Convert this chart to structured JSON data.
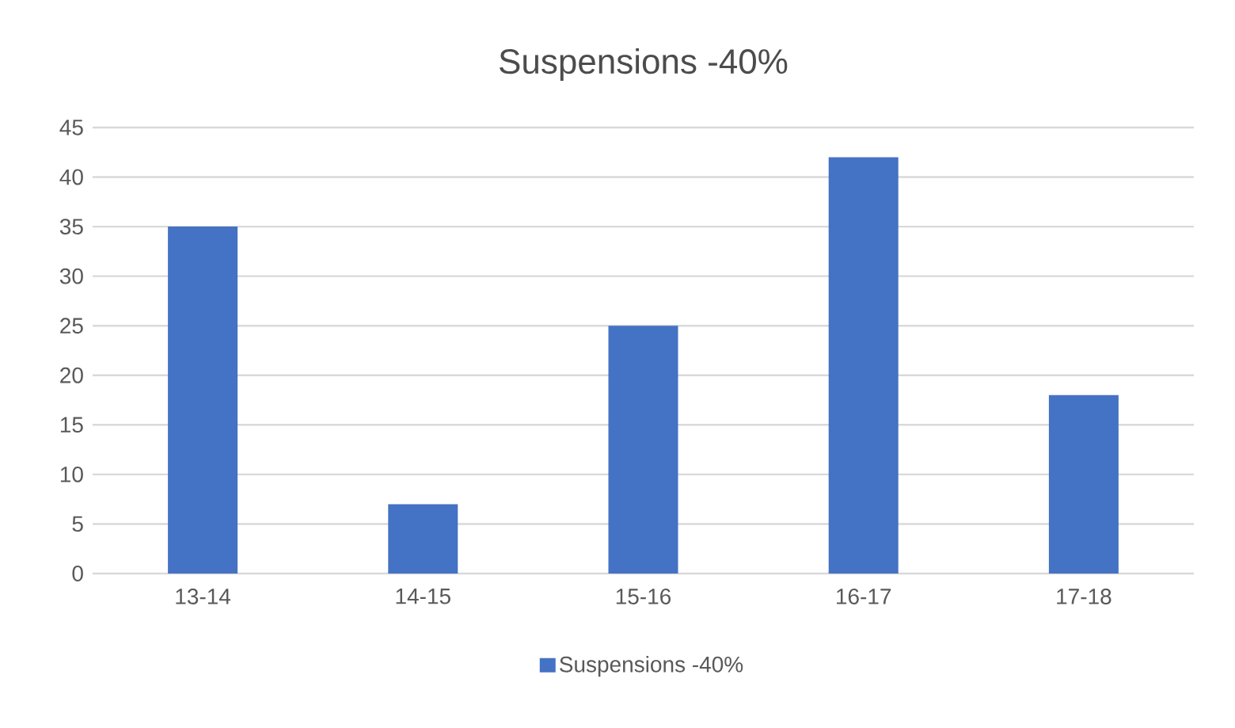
{
  "chart_data": {
    "type": "bar",
    "title": "Suspensions -40%",
    "categories": [
      "13-14",
      "14-15",
      "15-16",
      "16-17",
      "17-18"
    ],
    "series": [
      {
        "name": "Suspensions -40%",
        "color": "#4472c4",
        "values": [
          35,
          7,
          25,
          42,
          18
        ]
      }
    ],
    "ylim": [
      0,
      45
    ],
    "yticks": [
      0,
      5,
      10,
      15,
      20,
      25,
      30,
      35,
      40,
      45
    ],
    "grid": "y",
    "legend": "bottom"
  }
}
